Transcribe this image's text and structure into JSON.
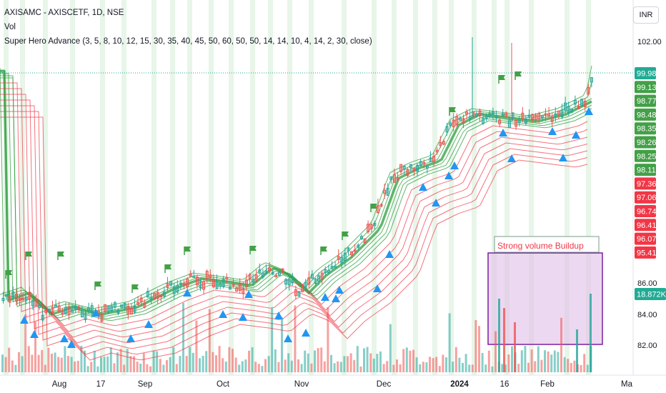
{
  "header": {
    "symbol": "AXISAMC - AXISCETF, 1D, NSE",
    "volume_label": "Vol",
    "indicator": "Super Hero Advance (3, 5, 8, 10, 12, 15, 30, 35, 40, 45, 50, 60, 50, 50, 14, 14, 10, 4, 14, 2, 30, close)"
  },
  "currency": "INR",
  "colors": {
    "up": "#26a69a",
    "down": "#ef5350",
    "ma_green": "#2e9e3e",
    "ma_red": "#f23645",
    "signal_arrow": "#2196f3",
    "flag": "#43a047",
    "box_fill": "#e1bee7",
    "box_border": "#7b1fa2",
    "last_price": "#22ab94",
    "band_bg": "#e8f5e9"
  },
  "chart_data": {
    "type": "candlestick",
    "y_axis_ticks": [
      "102.00",
      "86.00",
      "84.00",
      "82.00"
    ],
    "x_axis_labels": [
      "Aug",
      "17",
      "Sep",
      "Oct",
      "Nov",
      "Dec",
      "2024",
      "16",
      "Feb",
      "Ma"
    ],
    "price_labels": [
      {
        "text": "99.98",
        "color": "#22ab94"
      },
      {
        "text": "99.13",
        "color": "#43a047"
      },
      {
        "text": "98.77",
        "color": "#43a047"
      },
      {
        "text": "98.48",
        "color": "#43a047"
      },
      {
        "text": "98.35",
        "color": "#43a047"
      },
      {
        "text": "98.26",
        "color": "#43a047"
      },
      {
        "text": "98.25",
        "color": "#43a047"
      },
      {
        "text": "98.11",
        "color": "#43a047"
      },
      {
        "text": "97.36",
        "color": "#f23645"
      },
      {
        "text": "97.06",
        "color": "#f23645"
      },
      {
        "text": "96.74",
        "color": "#f23645"
      },
      {
        "text": "96.41",
        "color": "#f23645"
      },
      {
        "text": "96.07",
        "color": "#f23645"
      },
      {
        "text": "95.41",
        "color": "#f23645"
      },
      {
        "text": "18.872K",
        "color": "#22ab94"
      }
    ],
    "last_price": 99.98,
    "volume_box_label": "Strong volume Buildup",
    "legend": "none",
    "grid": false
  }
}
